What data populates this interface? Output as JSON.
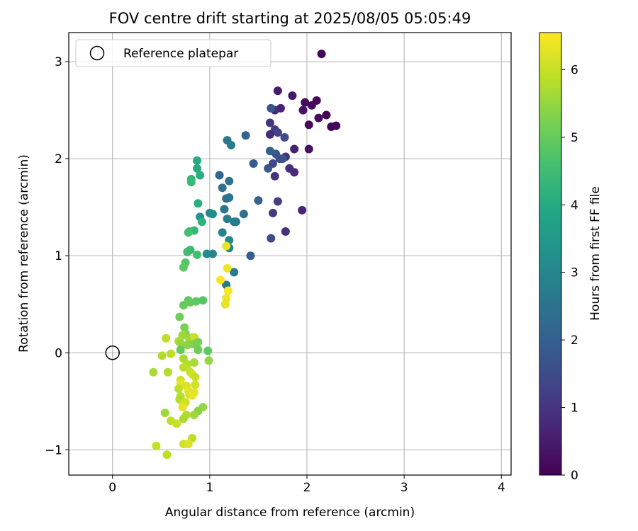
{
  "chart_data": {
    "type": "scatter",
    "title": "FOV centre drift starting at 2025/08/05 05:05:49",
    "xlabel": "Angular distance from reference (arcmin)",
    "ylabel": "Rotation from reference (arcmin)",
    "xlim": [
      -0.45,
      4.1
    ],
    "ylim": [
      -1.26,
      3.3
    ],
    "xticks": [
      0,
      1,
      2,
      3,
      4
    ],
    "yticks": [
      -1,
      0,
      1,
      2,
      3
    ],
    "xtick_labels": [
      "0",
      "1",
      "2",
      "3",
      "4"
    ],
    "ytick_labels": [
      "−1",
      "0",
      "1",
      "2",
      "3"
    ],
    "grid": true,
    "legend": {
      "position": "top-left",
      "label": "Reference platepar"
    },
    "reference_point": {
      "x": 0,
      "y": 0
    },
    "colorbar": {
      "label": "Hours from first FF file",
      "min": 0,
      "max": 6.55,
      "ticks": [
        0,
        1,
        2,
        3,
        4,
        5,
        6
      ],
      "tick_labels": [
        "0",
        "1",
        "2",
        "3",
        "4",
        "5",
        "6"
      ],
      "colormap": "viridis"
    },
    "points": [
      [
        2.15,
        3.08,
        0.05
      ],
      [
        2.1,
        2.6,
        0.1
      ],
      [
        1.98,
        2.58,
        0.2
      ],
      [
        2.2,
        2.45,
        0.1
      ],
      [
        2.05,
        2.55,
        0.15
      ],
      [
        2.12,
        2.42,
        0.2
      ],
      [
        2.25,
        2.33,
        0.05
      ],
      [
        2.3,
        2.34,
        0.1
      ],
      [
        2.02,
        2.35,
        0.2
      ],
      [
        1.96,
        2.5,
        0.3
      ],
      [
        1.85,
        2.65,
        0.4
      ],
      [
        1.7,
        2.7,
        0.5
      ],
      [
        1.73,
        2.52,
        0.6
      ],
      [
        1.67,
        2.5,
        0.8
      ],
      [
        1.63,
        2.52,
        1.7
      ],
      [
        1.62,
        2.37,
        1.0
      ],
      [
        1.67,
        2.3,
        1.2
      ],
      [
        1.7,
        2.27,
        1.3
      ],
      [
        1.62,
        2.25,
        0.8
      ],
      [
        1.77,
        2.22,
        1.5
      ],
      [
        1.87,
        2.1,
        0.6
      ],
      [
        2.02,
        2.1,
        0.3
      ],
      [
        1.78,
        2.02,
        0.9
      ],
      [
        1.72,
        2.0,
        1.6
      ],
      [
        1.68,
        2.05,
        1.8
      ],
      [
        1.62,
        2.08,
        2.0
      ],
      [
        1.6,
        1.9,
        1.8
      ],
      [
        1.65,
        1.95,
        1.4
      ],
      [
        1.75,
        2.0,
        1.7
      ],
      [
        1.82,
        1.9,
        0.9
      ],
      [
        1.87,
        1.86,
        0.8
      ],
      [
        1.67,
        1.82,
        1.0
      ],
      [
        1.45,
        1.95,
        1.9
      ],
      [
        1.37,
        2.24,
        2.1
      ],
      [
        1.18,
        2.19,
        2.6
      ],
      [
        1.22,
        2.14,
        2.7
      ],
      [
        1.95,
        1.47,
        0.7
      ],
      [
        1.7,
        1.56,
        1.2
      ],
      [
        1.65,
        1.44,
        1.1
      ],
      [
        1.5,
        1.57,
        2.1
      ],
      [
        1.78,
        1.25,
        0.9
      ],
      [
        1.63,
        1.18,
        1.5
      ],
      [
        1.42,
        1.0,
        2.0
      ],
      [
        1.1,
        1.83,
        2.2
      ],
      [
        1.2,
        1.77,
        2.5
      ],
      [
        1.13,
        1.7,
        2.4
      ],
      [
        1.2,
        1.6,
        2.6
      ],
      [
        1.17,
        1.59,
        2.4
      ],
      [
        1.15,
        1.48,
        2.6
      ],
      [
        1.18,
        1.38,
        2.8
      ],
      [
        1.27,
        1.35,
        2.5
      ],
      [
        1.35,
        1.43,
        2.4
      ],
      [
        1.25,
        1.35,
        2.7
      ],
      [
        1.13,
        1.24,
        2.9
      ],
      [
        1.2,
        1.16,
        3.0
      ],
      [
        1.2,
        1.08,
        2.8
      ],
      [
        1.0,
        1.44,
        3.0
      ],
      [
        1.03,
        1.43,
        3.2
      ],
      [
        0.9,
        1.4,
        3.3
      ],
      [
        0.97,
        1.02,
        3.1
      ],
      [
        1.03,
        1.02,
        3.0
      ],
      [
        1.25,
        0.83,
        2.7
      ],
      [
        1.17,
        0.7,
        2.6
      ],
      [
        0.87,
        1.98,
        4.0
      ],
      [
        0.87,
        1.9,
        4.0
      ],
      [
        0.9,
        1.83,
        4.1
      ],
      [
        0.81,
        1.79,
        4.3
      ],
      [
        0.81,
        1.76,
        4.4
      ],
      [
        0.88,
        1.54,
        4.1
      ],
      [
        0.92,
        1.35,
        4.2
      ],
      [
        0.84,
        1.26,
        4.3
      ],
      [
        0.79,
        1.25,
        4.4
      ],
      [
        0.78,
        1.24,
        4.6
      ],
      [
        0.8,
        1.06,
        4.4
      ],
      [
        0.77,
        1.04,
        4.5
      ],
      [
        0.87,
        1.01,
        4.6
      ],
      [
        0.75,
        0.93,
        4.8
      ],
      [
        0.73,
        0.88,
        4.9
      ],
      [
        1.17,
        1.1,
        6.3
      ],
      [
        1.18,
        0.87,
        6.4
      ],
      [
        1.11,
        0.75,
        6.5
      ],
      [
        1.19,
        0.64,
        6.5
      ],
      [
        1.17,
        0.56,
        6.4
      ],
      [
        1.16,
        0.5,
        6.3
      ],
      [
        0.78,
        0.54,
        4.9
      ],
      [
        0.8,
        0.52,
        5.0
      ],
      [
        0.86,
        0.53,
        4.9
      ],
      [
        0.93,
        0.54,
        4.8
      ],
      [
        0.73,
        0.49,
        5.0
      ],
      [
        0.69,
        0.37,
        5.1
      ],
      [
        0.74,
        0.26,
        5.2
      ],
      [
        0.75,
        0.2,
        5.3
      ],
      [
        0.83,
        0.16,
        5.5
      ],
      [
        0.72,
        0.18,
        5.6
      ],
      [
        0.79,
        0.15,
        5.6
      ],
      [
        0.84,
        0.16,
        6.0
      ],
      [
        0.68,
        0.12,
        5.8
      ],
      [
        0.55,
        0.15,
        5.9
      ],
      [
        0.7,
        0.1,
        5.5
      ],
      [
        0.77,
        0.08,
        5.4
      ],
      [
        0.83,
        0.09,
        5.3
      ],
      [
        0.88,
        0.11,
        5.2
      ],
      [
        0.88,
        0.03,
        5.1
      ],
      [
        0.7,
        0.03,
        5.0
      ],
      [
        0.98,
        0.02,
        4.9
      ],
      [
        0.6,
        -0.01,
        5.9
      ],
      [
        0.51,
        -0.03,
        5.8
      ],
      [
        0.73,
        -0.06,
        5.7
      ],
      [
        0.77,
        -0.12,
        5.8
      ],
      [
        0.84,
        -0.1,
        5.7
      ],
      [
        0.99,
        -0.08,
        5.5
      ],
      [
        0.73,
        -0.15,
        5.9
      ],
      [
        0.8,
        -0.2,
        6.0
      ],
      [
        0.82,
        -0.22,
        6.1
      ],
      [
        0.85,
        -0.25,
        6.0
      ],
      [
        0.57,
        -0.2,
        5.8
      ],
      [
        0.42,
        -0.2,
        5.7
      ],
      [
        0.7,
        -0.28,
        6.1
      ],
      [
        0.7,
        -0.32,
        6.3
      ],
      [
        0.76,
        -0.34,
        6.2
      ],
      [
        0.85,
        -0.33,
        6.1
      ],
      [
        0.68,
        -0.37,
        5.9
      ],
      [
        0.78,
        -0.39,
        6.3
      ],
      [
        0.84,
        -0.41,
        6.3
      ],
      [
        0.79,
        -0.43,
        6.2
      ],
      [
        0.82,
        -0.44,
        6.3
      ],
      [
        0.7,
        -0.45,
        5.9
      ],
      [
        0.69,
        -0.48,
        5.8
      ],
      [
        0.75,
        -0.51,
        6.0
      ],
      [
        0.73,
        -0.53,
        6.1
      ],
      [
        0.72,
        -0.56,
        6.3
      ],
      [
        0.93,
        -0.56,
        5.5
      ],
      [
        0.88,
        -0.6,
        5.4
      ],
      [
        0.54,
        -0.62,
        5.6
      ],
      [
        0.84,
        -0.64,
        5.6
      ],
      [
        0.76,
        -0.64,
        5.8
      ],
      [
        0.73,
        -0.68,
        5.7
      ],
      [
        0.6,
        -0.7,
        5.9
      ],
      [
        0.66,
        -0.73,
        6.0
      ],
      [
        0.82,
        -0.88,
        5.9
      ],
      [
        0.73,
        -0.94,
        6.1
      ],
      [
        0.78,
        -0.94,
        6.2
      ],
      [
        0.45,
        -0.96,
        6.0
      ],
      [
        0.56,
        -1.05,
        5.9
      ]
    ]
  }
}
